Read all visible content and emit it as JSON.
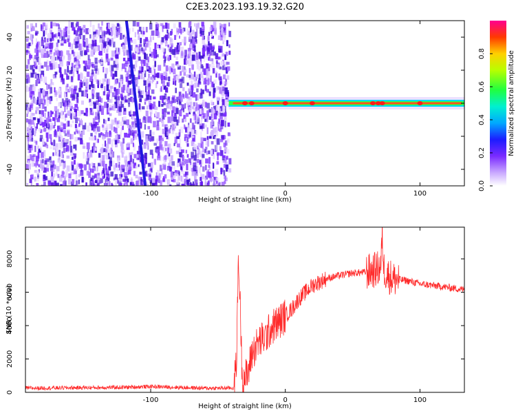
{
  "title": "C2E3.2023.193.19.32.G20",
  "chart_data": [
    {
      "type": "heatmap",
      "xlabel": "Height of straight line (km)",
      "ylabel": "Frequency (Hz)",
      "xlim": [
        -193,
        133
      ],
      "ylim": [
        -50,
        50
      ],
      "xticks": [
        -100,
        0,
        100
      ],
      "yticks": [
        -40,
        -20,
        0,
        20,
        40
      ],
      "colorbar": {
        "label": "Normalized spectral amplitude",
        "range": [
          0,
          1
        ],
        "ticks": [
          "0.0",
          "0.2",
          "0.4",
          "0.6",
          "0.8"
        ]
      },
      "features": {
        "noise_region_x": [
          -193,
          -42
        ],
        "sweep_line": {
          "x": [
            -118,
            -104
          ],
          "y": [
            50,
            -50
          ]
        },
        "carrier": {
          "x_start": -42,
          "x_end": 133,
          "y": 0
        },
        "carrier_peaks_x": [
          -30,
          -25,
          0,
          20,
          65,
          69,
          72,
          100
        ]
      }
    },
    {
      "type": "line",
      "xlabel": "Height of straight line (km)",
      "ylabel": "SNR (10 * v/v)",
      "xlim": [
        -193,
        133
      ],
      "ylim": [
        0,
        9900
      ],
      "xticks": [
        -100,
        0,
        100
      ],
      "yticks": [
        0,
        2000,
        4000,
        6000,
        8000
      ],
      "color": "#ff2a2a",
      "envelope": {
        "x": [
          -193,
          -150,
          -120,
          -100,
          -60,
          -38,
          -36,
          -35,
          -34,
          -32,
          -28,
          -25,
          -20,
          -15,
          -10,
          -5,
          0,
          5,
          10,
          15,
          20,
          30,
          40,
          50,
          60,
          65,
          69,
          71,
          72,
          73,
          75,
          80,
          90,
          100,
          110,
          120,
          133
        ],
        "y": [
          250,
          280,
          300,
          350,
          250,
          260,
          2500,
          8000,
          6500,
          900,
          1000,
          2300,
          3000,
          3300,
          3900,
          4200,
          4600,
          5000,
          5600,
          6000,
          6400,
          6800,
          7000,
          7150,
          7200,
          7300,
          7400,
          7600,
          9400,
          7500,
          7100,
          6800,
          6700,
          6500,
          6400,
          6300,
          6150
        ]
      }
    }
  ]
}
